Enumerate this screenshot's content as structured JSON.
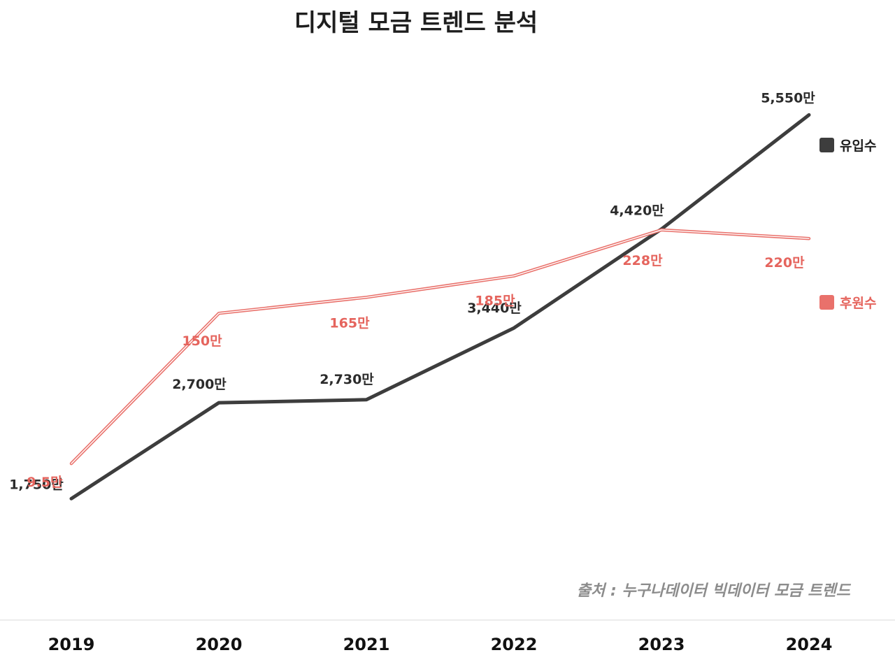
{
  "chart_data": {
    "type": "line",
    "title": "디지털 모금 트렌드 분석",
    "categories": [
      "2019",
      "2020",
      "2021",
      "2022",
      "2023",
      "2024"
    ],
    "series": [
      {
        "name": "유입수",
        "color": "#3d3d3d",
        "label_color": "#2b2b2b",
        "values": [
          1750,
          2700,
          2730,
          3440,
          4420,
          5550
        ],
        "labels": [
          "1,750만",
          "2,700만",
          "2,730만",
          "3,440만",
          "4,420만",
          "5,550만"
        ],
        "ylim": [
          1150,
          5650
        ]
      },
      {
        "name": "후원수",
        "color": "#e9716b",
        "label_color": "#e5645d",
        "values": [
          9.5,
          150,
          165,
          185,
          228,
          220
        ],
        "labels": [
          "9.5만",
          "150만",
          "165만",
          "185만",
          "228만",
          "220만"
        ],
        "ylim": [
          -80,
          345
        ]
      }
    ],
    "source": "출처 : 누구나데이터 빅데이터 모금 트렌드",
    "xlabel": "",
    "ylabel": "",
    "grid": false,
    "legend": "right"
  }
}
